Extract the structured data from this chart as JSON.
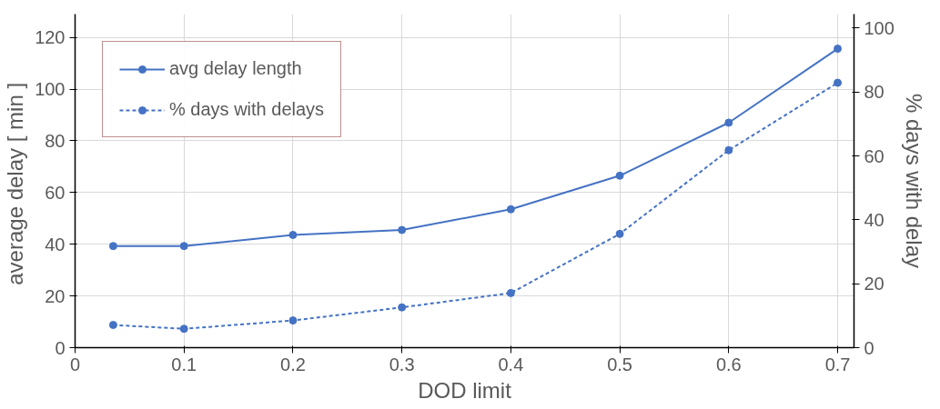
{
  "chart_data": {
    "type": "line",
    "xlabel": "DOD limit",
    "ylabel": "average delay  [ min ]",
    "y2label": "% days with delay",
    "x": [
      0.035,
      0.1,
      0.2,
      0.3,
      0.4,
      0.5,
      0.6,
      0.7
    ],
    "series": [
      {
        "name": "avg delay length",
        "color": "#4472c4",
        "line_style": "solid",
        "values": [
          39.3,
          39.3,
          43.6,
          45.5,
          53.5,
          66.5,
          87,
          115.6
        ]
      },
      {
        "name": "% days with delays",
        "color": "#4472c4",
        "line_style": "dashed",
        "axis": "y2",
        "values": [
          7.1,
          5.9,
          8.5,
          12.6,
          17.1,
          35.6,
          61.8,
          82.9
        ]
      }
    ],
    "xlim": [
      0,
      0.715
    ],
    "xticks": [
      0,
      0.1,
      0.2,
      0.3,
      0.4,
      0.5,
      0.6,
      0.7
    ],
    "ylim": [
      0,
      129
    ],
    "yticks": [
      0,
      20,
      40,
      60,
      80,
      100,
      120
    ],
    "y2lim": [
      0,
      104.4
    ],
    "y2ticks": [
      0,
      20,
      40,
      60,
      80,
      100
    ],
    "grid": true,
    "legend": "top left",
    "marker": "circle"
  }
}
